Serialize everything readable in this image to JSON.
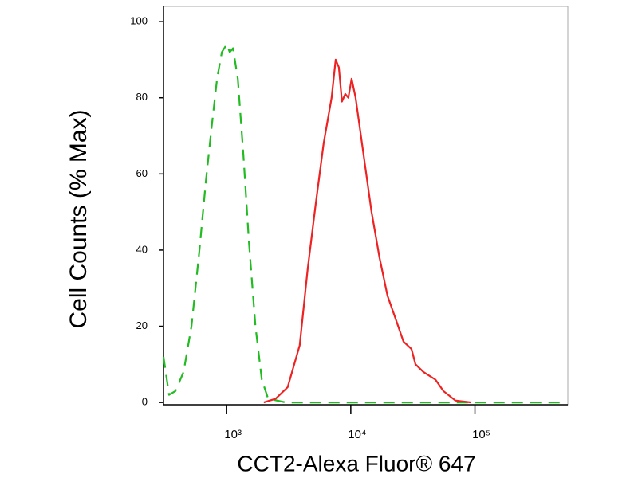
{
  "chart_data": {
    "type": "line",
    "xlabel": "CCT2-Alexa Fluor® 647",
    "ylabel": "Cell Counts (% Max)",
    "xscale": "log",
    "xlim": [
      310,
      560000
    ],
    "ylim": [
      -0.6,
      104
    ],
    "xticks": [
      {
        "value": 1000,
        "label": "10³"
      },
      {
        "value": 10000,
        "label": "10⁴"
      },
      {
        "value": 100000,
        "label": "10⁵"
      }
    ],
    "yticks": [
      0,
      20,
      40,
      60,
      80,
      100
    ],
    "series": [
      {
        "color": "#22bb22",
        "dash": true,
        "x": [
          310,
          344,
          387,
          450,
          521,
          604,
          680,
          755,
          837,
          915,
          1000,
          1060,
          1126,
          1230,
          1365,
          1514,
          1705,
          1920,
          2160,
          3000,
          10000,
          100000,
          500000
        ],
        "values": [
          12,
          2,
          3,
          8,
          20,
          40,
          58,
          72,
          85,
          92,
          94,
          92,
          93,
          85,
          65,
          42,
          20,
          6,
          1,
          0,
          0,
          0,
          0
        ]
      },
      {
        "color": "#ee2222",
        "dash": false,
        "x": [
          1990,
          2485,
          3100,
          3875,
          4495,
          5210,
          6040,
          7010,
          7550,
          8010,
          8490,
          9020,
          9565,
          10150,
          10930,
          12680,
          14700,
          17050,
          19770,
          22930,
          26580,
          30820,
          33200,
          38480,
          48050,
          55720,
          69530,
          93500
        ],
        "values": [
          0,
          1,
          4,
          15,
          35,
          52,
          68,
          80,
          90,
          88,
          79,
          81,
          80,
          85,
          80,
          65,
          50,
          38,
          28,
          22,
          16,
          14,
          10,
          8,
          6,
          3,
          0.5,
          0
        ]
      }
    ]
  }
}
